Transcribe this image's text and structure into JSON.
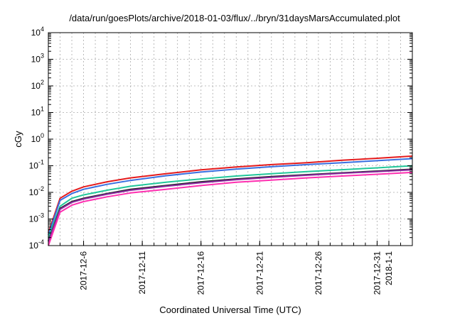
{
  "chart_data": {
    "type": "line",
    "title": "/data/run/goesPlots/archive/2018-01-03/flux/../bryn/31daysMarsAccumulated.plot",
    "xlabel": "Coordinated Universal Time (UTC)",
    "ylabel": "cGy",
    "y_scale": "log",
    "ylim": [
      0.0001,
      10000
    ],
    "xlim": [
      "2017-12-03",
      "2018-01-03"
    ],
    "grid": true,
    "y_ticks": [
      {
        "base": "10",
        "exp": "-4"
      },
      {
        "base": "10",
        "exp": "-3"
      },
      {
        "base": "10",
        "exp": "-2"
      },
      {
        "base": "10",
        "exp": "-1"
      },
      {
        "base": "10",
        "exp": "0"
      },
      {
        "base": "10",
        "exp": "1"
      },
      {
        "base": "10",
        "exp": "2"
      },
      {
        "base": "10",
        "exp": "3"
      },
      {
        "base": "10",
        "exp": "4"
      }
    ],
    "x_ticks": [
      "2017-12-6",
      "2017-12-11",
      "2017-12-16",
      "2017-12-21",
      "2017-12-26",
      "2017-12-31",
      "2018-1-1"
    ],
    "x": [
      "2017-12-03",
      "2017-12-04",
      "2017-12-05",
      "2017-12-06",
      "2017-12-08",
      "2017-12-10",
      "2017-12-13",
      "2017-12-16",
      "2017-12-19",
      "2017-12-22",
      "2017-12-25",
      "2017-12-28",
      "2017-12-31",
      "2018-01-03"
    ],
    "series": [
      {
        "color": "#e41a1c",
        "values": [
          0.0003,
          0.006,
          0.011,
          0.016,
          0.025,
          0.035,
          0.05,
          0.07,
          0.09,
          0.11,
          0.13,
          0.16,
          0.19,
          0.23
        ]
      },
      {
        "color": "#3a6fe0",
        "values": [
          0.00025,
          0.005,
          0.009,
          0.013,
          0.02,
          0.028,
          0.042,
          0.058,
          0.075,
          0.092,
          0.11,
          0.13,
          0.155,
          0.185
        ]
      },
      {
        "color": "#21c79a",
        "values": [
          0.0002,
          0.003,
          0.006,
          0.008,
          0.012,
          0.017,
          0.024,
          0.032,
          0.041,
          0.05,
          0.06,
          0.071,
          0.083,
          0.1
        ]
      },
      {
        "color": "#222222",
        "values": [
          0.00015,
          0.0025,
          0.0045,
          0.006,
          0.009,
          0.013,
          0.018,
          0.025,
          0.032,
          0.039,
          0.046,
          0.054,
          0.063,
          0.074
        ]
      },
      {
        "color": "#8b2aa0",
        "values": [
          0.00014,
          0.0023,
          0.0042,
          0.0056,
          0.0085,
          0.012,
          0.017,
          0.023,
          0.03,
          0.037,
          0.044,
          0.052,
          0.06,
          0.07
        ]
      },
      {
        "color": "#ff2fb0",
        "values": [
          0.0001,
          0.0018,
          0.0033,
          0.0045,
          0.0068,
          0.0095,
          0.013,
          0.018,
          0.024,
          0.029,
          0.035,
          0.041,
          0.048,
          0.056
        ]
      }
    ]
  }
}
